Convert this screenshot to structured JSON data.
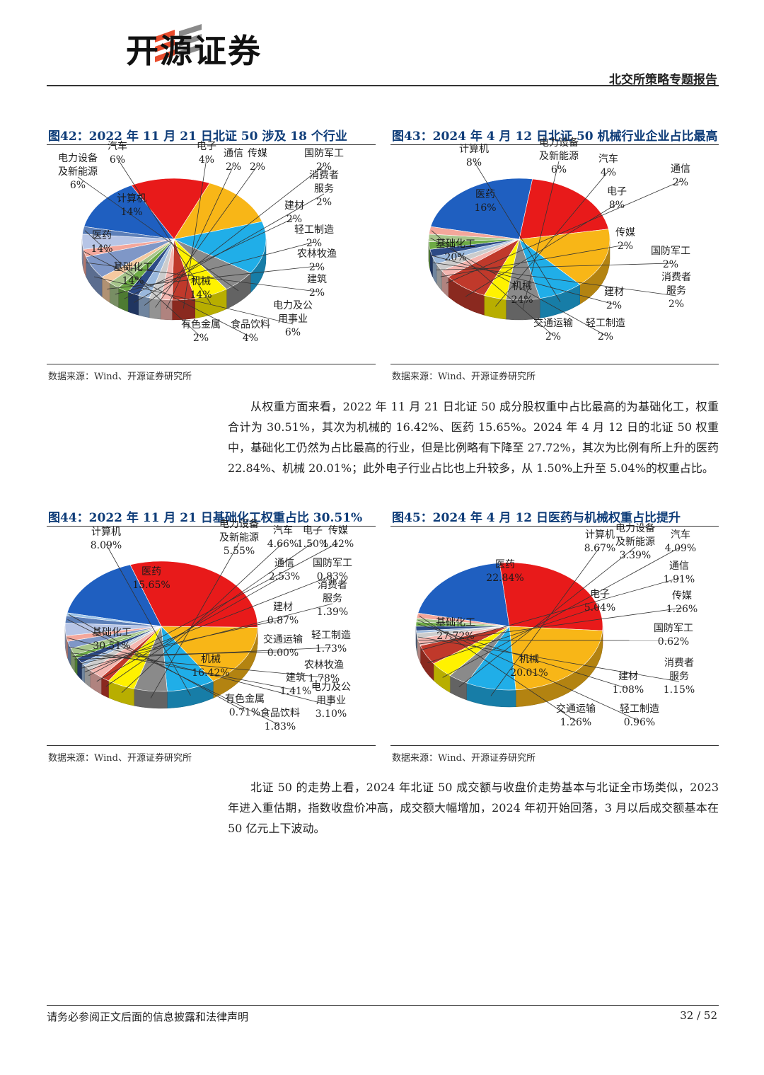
{
  "header": {
    "brand": "开源证券",
    "report_title": "北交所策略专题报告"
  },
  "colors": {
    "blue": "#1f5fc0",
    "red": "#e81a1a",
    "orange": "#f8b617",
    "cyan": "#20aee8",
    "gray": "#8a8a8a",
    "yellow": "#fff200",
    "darkred": "#c0392b",
    "pink": "#f4b6b0",
    "lightgray": "#cccccc",
    "lightblue": "#9ab8dc",
    "darkblue": "#2c4a86",
    "green": "#6dab45",
    "sage": "#a7c58b",
    "peach": "#f5c9a0",
    "slate": "#7f97c7",
    "salmon": "#f4a79b",
    "lavender": "#b7c5e6",
    "steel": "#5c7fb8"
  },
  "figures": [
    {
      "title": "图42：2022 年 11 月 21 日北证 50 涉及 18 个行业",
      "source": "数据来源：Wind、开源证券研究所",
      "chart_data": {
        "type": "pie",
        "unit": "%",
        "slices": [
          {
            "name": "机械",
            "value": 14,
            "label": "14%",
            "color": "#1f5fc0"
          },
          {
            "name": "基础化工",
            "value": 14,
            "label": "14%",
            "color": "#e81a1a"
          },
          {
            "name": "医药",
            "value": 14,
            "label": "14%",
            "color": "#f8b617"
          },
          {
            "name": "计算机",
            "value": 14,
            "label": "14%",
            "color": "#20aee8"
          },
          {
            "name": "电力设备及新能源",
            "value": 6,
            "label": "6%",
            "color": "#8a8a8a"
          },
          {
            "name": "汽车",
            "value": 6,
            "label": "6%",
            "color": "#fff200"
          },
          {
            "name": "电子",
            "value": 4,
            "label": "4%",
            "color": "#c0392b"
          },
          {
            "name": "通信",
            "value": 2,
            "label": "2%",
            "color": "#f4b6b0"
          },
          {
            "name": "传媒",
            "value": 2,
            "label": "2%",
            "color": "#cccccc"
          },
          {
            "name": "国防军工",
            "value": 2,
            "label": "2%",
            "color": "#9ab8dc"
          },
          {
            "name": "消费者服务",
            "value": 2,
            "label": "2%",
            "color": "#2c4a86"
          },
          {
            "name": "建材",
            "value": 2,
            "label": "2%",
            "color": "#6dab45"
          },
          {
            "name": "轻工制造",
            "value": 2,
            "label": "2%",
            "color": "#a7c58b"
          },
          {
            "name": "农林牧渔",
            "value": 2,
            "label": "2%",
            "color": "#f5c9a0"
          },
          {
            "name": "电力及公用事业",
            "value": 6,
            "label": "6%",
            "color": "#7f97c7"
          },
          {
            "name": "建筑",
            "value": 2,
            "label": "2%",
            "color": "#f4a79b"
          },
          {
            "name": "食品饮料",
            "value": 4,
            "label": "4%",
            "color": "#b7c5e6"
          },
          {
            "name": "有色金属",
            "value": 2,
            "label": "2%",
            "color": "#5c7fb8"
          }
        ]
      }
    },
    {
      "title": "图43：2024 年 4 月 12 日北证 50 机械行业企业占比最高",
      "source": "数据来源：Wind、开源证券研究所",
      "chart_data": {
        "type": "pie",
        "unit": "%",
        "slices": [
          {
            "name": "机械",
            "value": 24,
            "label": "24%",
            "color": "#1f5fc0"
          },
          {
            "name": "基础化工",
            "value": 20,
            "label": "20%",
            "color": "#e81a1a"
          },
          {
            "name": "医药",
            "value": 16,
            "label": "16%",
            "color": "#f8b617"
          },
          {
            "name": "计算机",
            "value": 8,
            "label": "8%",
            "color": "#20aee8"
          },
          {
            "name": "电力设备及新能源",
            "value": 6,
            "label": "6%",
            "color": "#8a8a8a"
          },
          {
            "name": "汽车",
            "value": 4,
            "label": "4%",
            "color": "#fff200"
          },
          {
            "name": "电子",
            "value": 8,
            "label": "8%",
            "color": "#c0392b"
          },
          {
            "name": "通信",
            "value": 2,
            "label": "2%",
            "color": "#f4b6b0"
          },
          {
            "name": "传媒",
            "value": 2,
            "label": "2%",
            "color": "#cccccc"
          },
          {
            "name": "国防军工",
            "value": 2,
            "label": "2%",
            "color": "#9ab8dc"
          },
          {
            "name": "消费者服务",
            "value": 2,
            "label": "2%",
            "color": "#2c4a86"
          },
          {
            "name": "建材",
            "value": 2,
            "label": "2%",
            "color": "#6dab45"
          },
          {
            "name": "轻工制造",
            "value": 2,
            "label": "2%",
            "color": "#a7c58b"
          },
          {
            "name": "交通运输",
            "value": 2,
            "label": "2%",
            "color": "#f4a79b"
          }
        ]
      }
    },
    {
      "title": "图44：2022 年 11 月 21 日基础化工权重占比 30.51%",
      "source": "数据来源：Wind、开源证券研究所",
      "chart_data": {
        "type": "pie",
        "unit": "%",
        "slices": [
          {
            "name": "机械",
            "value": 16.42,
            "label": "16.42%",
            "color": "#1f5fc0"
          },
          {
            "name": "基础化工",
            "value": 30.51,
            "label": "30.51%",
            "color": "#e81a1a"
          },
          {
            "name": "医药",
            "value": 15.65,
            "label": "15.65%",
            "color": "#f8b617"
          },
          {
            "name": "计算机",
            "value": 8.09,
            "label": "8.09%",
            "color": "#20aee8"
          },
          {
            "name": "电力设备及新能源",
            "value": 5.55,
            "label": "5.55%",
            "color": "#8a8a8a"
          },
          {
            "name": "汽车",
            "value": 4.66,
            "label": "4.66%",
            "color": "#fff200"
          },
          {
            "name": "电子",
            "value": 1.5,
            "label": "1.50%",
            "color": "#c0392b"
          },
          {
            "name": "通信",
            "value": 2.53,
            "label": "2.53%",
            "color": "#f4b6b0"
          },
          {
            "name": "传媒",
            "value": 1.42,
            "label": "1.42%",
            "color": "#cccccc"
          },
          {
            "name": "国防军工",
            "value": 0.83,
            "label": "0.83%",
            "color": "#9ab8dc"
          },
          {
            "name": "消费者服务",
            "value": 1.39,
            "label": "1.39%",
            "color": "#2c4a86"
          },
          {
            "name": "建材",
            "value": 0.87,
            "label": "0.87%",
            "color": "#6dab45"
          },
          {
            "name": "轻工制造",
            "value": 1.73,
            "label": "1.73%",
            "color": "#a7c58b"
          },
          {
            "name": "交通运输",
            "value": 0.0,
            "label": "0.00%",
            "color": "#f5c9a0"
          },
          {
            "name": "农林牧渔",
            "value": 1.78,
            "label": "1.78%",
            "color": "#7f97c7"
          },
          {
            "name": "建筑",
            "value": 1.41,
            "label": "1.41%",
            "color": "#f4a79b"
          },
          {
            "name": "电力及公用事业",
            "value": 3.1,
            "label": "3.10%",
            "color": "#b7c5e6"
          },
          {
            "name": "食品饮料",
            "value": 1.83,
            "label": "1.83%",
            "color": "#5c7fb8"
          },
          {
            "name": "有色金属",
            "value": 0.71,
            "label": "0.71%",
            "color": "#9fc5e8"
          }
        ]
      }
    },
    {
      "title": "图45：2024 年 4 月 12 日医药与机械权重占比提升",
      "source": "数据来源：Wind、开源证券研究所",
      "chart_data": {
        "type": "pie",
        "unit": "%",
        "slices": [
          {
            "name": "机械",
            "value": 20.01,
            "label": "20.01%",
            "color": "#1f5fc0"
          },
          {
            "name": "基础化工",
            "value": 27.72,
            "label": "27.72%",
            "color": "#e81a1a"
          },
          {
            "name": "医药",
            "value": 22.84,
            "label": "22.84%",
            "color": "#f8b617"
          },
          {
            "name": "计算机",
            "value": 8.67,
            "label": "8.67%",
            "color": "#20aee8"
          },
          {
            "name": "电力设备及新能源",
            "value": 3.39,
            "label": "3.39%",
            "color": "#8a8a8a"
          },
          {
            "name": "汽车",
            "value": 4.09,
            "label": "4.09%",
            "color": "#fff200"
          },
          {
            "name": "电子",
            "value": 5.04,
            "label": "5.04%",
            "color": "#c0392b"
          },
          {
            "name": "通信",
            "value": 1.91,
            "label": "1.91%",
            "color": "#f4b6b0"
          },
          {
            "name": "传媒",
            "value": 1.26,
            "label": "1.26%",
            "color": "#cccccc"
          },
          {
            "name": "国防军工",
            "value": 0.62,
            "label": "0.62%",
            "color": "#9ab8dc"
          },
          {
            "name": "消费者服务",
            "value": 1.15,
            "label": "1.15%",
            "color": "#2c4a86"
          },
          {
            "name": "建材",
            "value": 1.08,
            "label": "1.08%",
            "color": "#6dab45"
          },
          {
            "name": "轻工制造",
            "value": 0.96,
            "label": "0.96%",
            "color": "#a7c58b"
          },
          {
            "name": "交通运输",
            "value": 1.26,
            "label": "1.26%",
            "color": "#f4a79b"
          }
        ]
      }
    }
  ],
  "paragraphs": [
    "从权重方面来看，2022 年 11 月 21 日北证 50 成分股权重中占比最高的为基础化工，权重合计为 30.51%，其次为机械的 16.42%、医药 15.65%。2024 年 4 月 12 日的北证 50 权重中，基础化工仍然为占比最高的行业，但是比例略有下降至 27.72%，其次为比例有所上升的医药 22.84%、机械 20.01%；此外电子行业占比也上升较多，从 1.50%上升至 5.04%的权重占比。",
    "北证 50 的走势上看，2024 年北证 50 成交额与收盘价走势基本与北证全市场类似，2023 年进入重估期，指数收盘价冲高，成交额大幅增加，2024 年初开始回落，3 月以后成交额基本在 50 亿元上下波动。"
  ],
  "footer": {
    "disclaimer": "请务必参阅正文后面的信息披露和法律声明",
    "page": "32 / 52"
  }
}
